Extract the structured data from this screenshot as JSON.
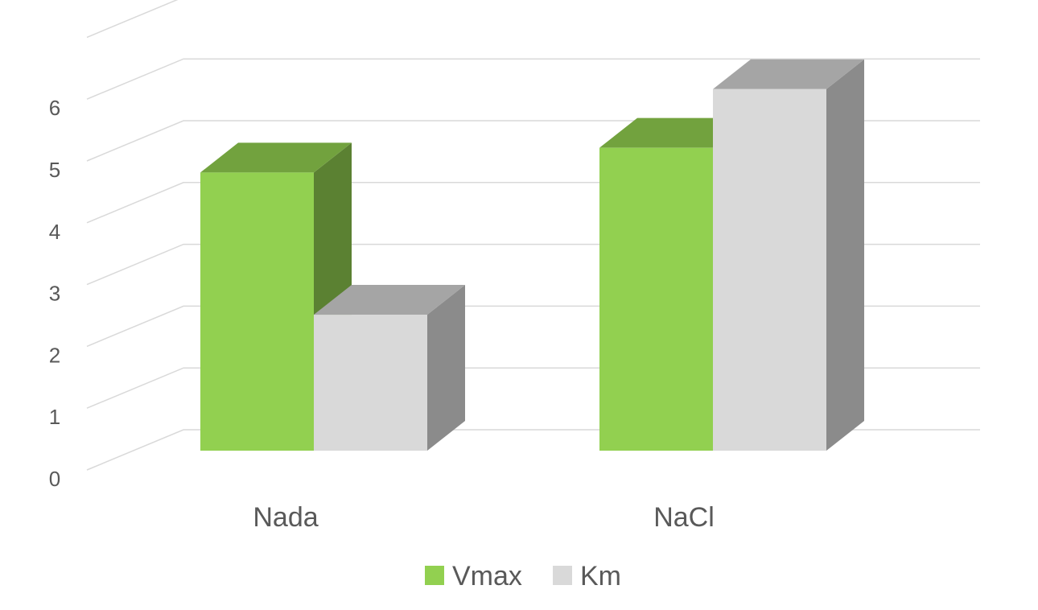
{
  "chart_data": {
    "type": "bar",
    "style": "3d-clustered-column",
    "categories": [
      "Nada",
      "NaCl"
    ],
    "series": [
      {
        "name": "Vmax",
        "values": [
          4.5,
          4.9
        ],
        "color": "#92d050"
      },
      {
        "name": "Km",
        "values": [
          2.2,
          5.85
        ],
        "color": "#d9d9d9"
      }
    ],
    "yticks": [
      "0",
      "1",
      "2",
      "3",
      "4",
      "5",
      "6"
    ],
    "ylim": [
      0,
      7
    ],
    "grid": true,
    "legend": "bottom"
  }
}
